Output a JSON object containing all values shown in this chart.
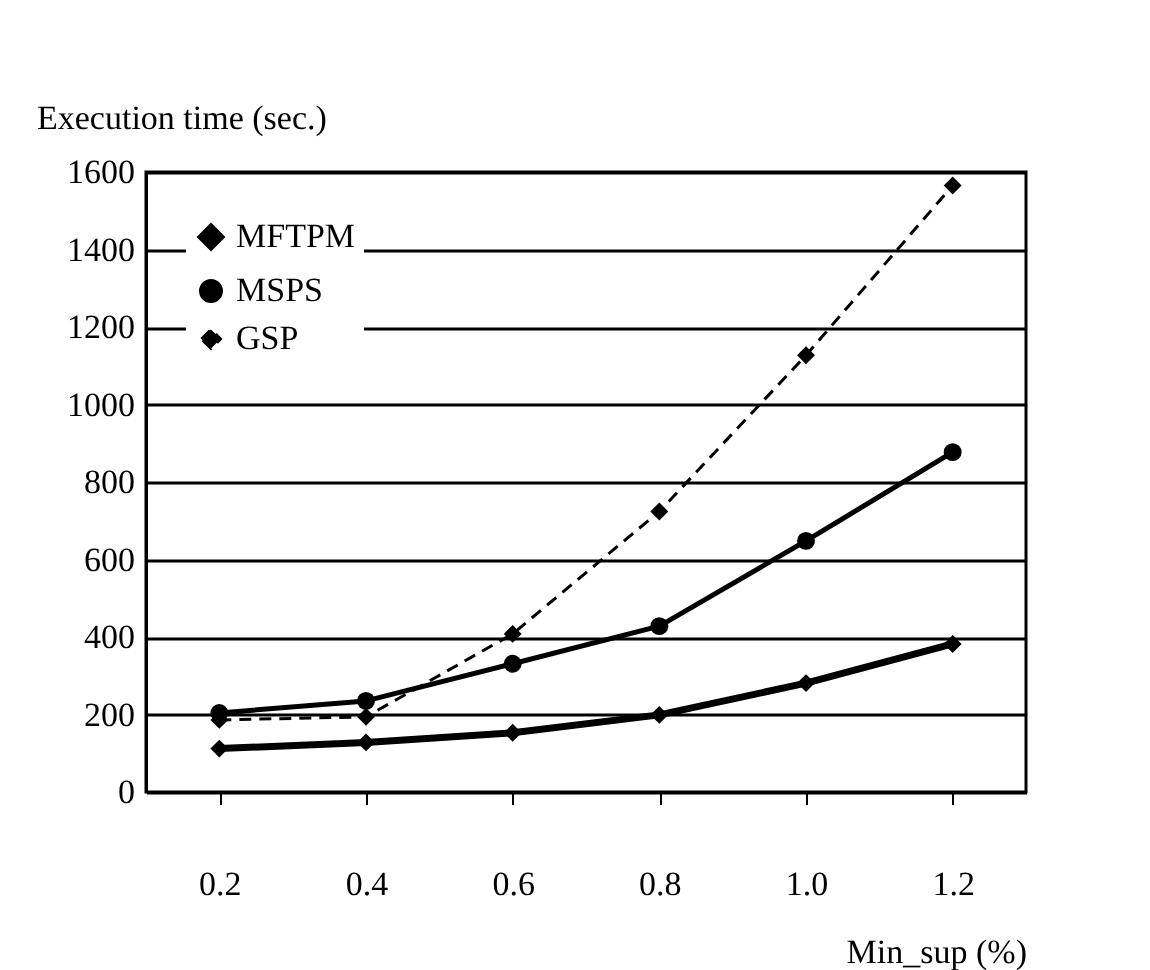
{
  "chart_data": {
    "type": "line",
    "xlabel": "Min_sup (%)",
    "ylabel": "Execution time (sec.)",
    "categories": [
      "0.2",
      "0.4",
      "0.6",
      "0.8",
      "1.0",
      "1.2"
    ],
    "series": [
      {
        "name": "MFTPM",
        "color": "#000000",
        "values": [
          112,
          128,
          153,
          199,
          281,
          382
        ]
      },
      {
        "name": "MSPS",
        "color": "#000000",
        "marker": "circle",
        "values": [
          204,
          235,
          331,
          428,
          648,
          877
        ]
      },
      {
        "name": "GSP",
        "color": "#000000",
        "line_style": "dashed",
        "values": [
          186,
          194,
          408,
          724,
          1127,
          1565
        ]
      }
    ],
    "ylim": [
      0,
      1600
    ],
    "yticks": [
      0,
      200,
      400,
      600,
      800,
      1000,
      1200,
      1400,
      1600
    ],
    "grid": "y",
    "legend": "top left",
    "marker": "diamond",
    "line_style": "solid"
  }
}
